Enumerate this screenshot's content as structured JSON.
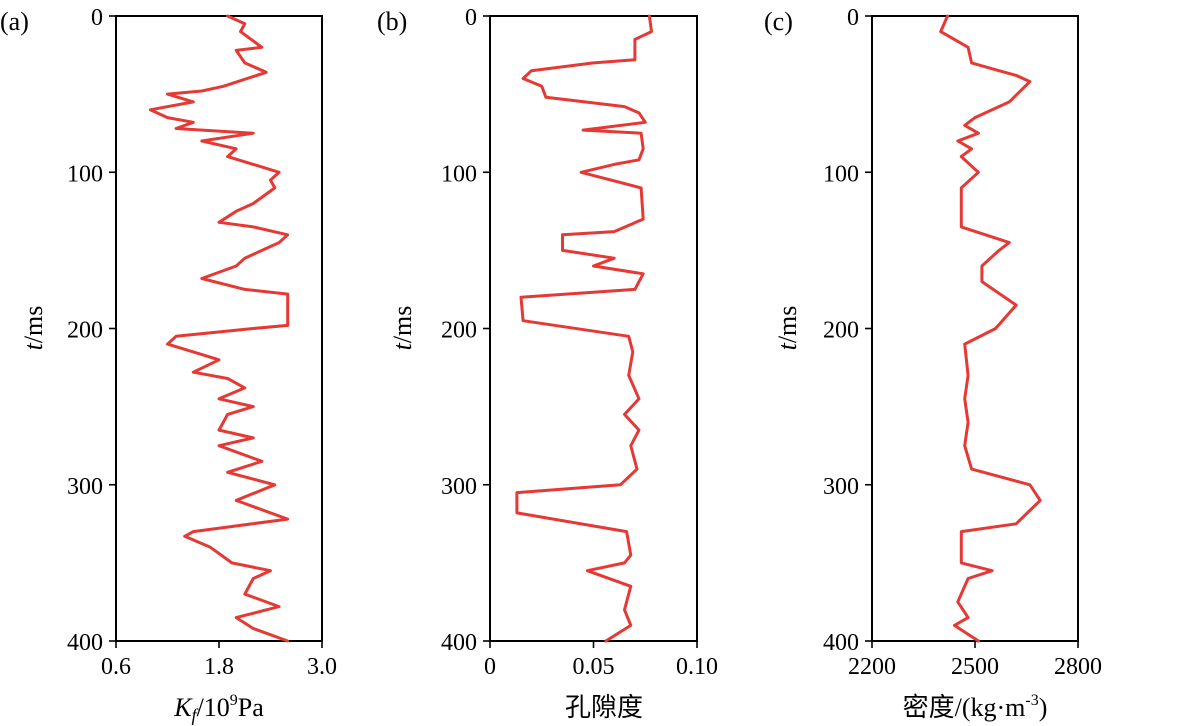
{
  "colors": {
    "series": "#e53935",
    "axis": "#000000"
  },
  "chart_data": [
    {
      "type": "line",
      "panel_label": "(a)",
      "title": "",
      "xlabel": {
        "prefix": "K",
        "subscript": "f",
        "mid": "/10",
        "superscript": "9",
        "suffix": "Pa"
      },
      "ylabel": {
        "italic": "t",
        "rest": "/ms"
      },
      "xlim": [
        0.6,
        3.0
      ],
      "ylim": [
        400,
        0
      ],
      "xticks": [
        0.6,
        1.8,
        3.0
      ],
      "xtick_labels": [
        "0.6",
        "1.8",
        "3.0"
      ],
      "yticks": [
        0,
        100,
        200,
        300,
        400
      ],
      "ytick_labels": [
        "0",
        "100",
        "200",
        "300",
        "400"
      ],
      "series": [
        {
          "name": "Kf",
          "points": [
            [
              1.9,
              0
            ],
            [
              2.1,
              5
            ],
            [
              2.05,
              10
            ],
            [
              2.3,
              20
            ],
            [
              2.0,
              22
            ],
            [
              2.1,
              30
            ],
            [
              2.35,
              36
            ],
            [
              1.85,
              45
            ],
            [
              1.6,
              48
            ],
            [
              1.2,
              50
            ],
            [
              1.5,
              55
            ],
            [
              1.0,
              60
            ],
            [
              1.2,
              65
            ],
            [
              1.5,
              68
            ],
            [
              1.3,
              72
            ],
            [
              2.2,
              75
            ],
            [
              1.6,
              80
            ],
            [
              2.0,
              85
            ],
            [
              1.9,
              90
            ],
            [
              2.2,
              95
            ],
            [
              2.5,
              100
            ],
            [
              2.4,
              105
            ],
            [
              2.45,
              110
            ],
            [
              2.2,
              120
            ],
            [
              2.0,
              125
            ],
            [
              1.8,
              132
            ],
            [
              2.2,
              135
            ],
            [
              2.6,
              140
            ],
            [
              2.5,
              145
            ],
            [
              2.3,
              150
            ],
            [
              2.1,
              155
            ],
            [
              2.0,
              160
            ],
            [
              1.6,
              168
            ],
            [
              2.1,
              175
            ],
            [
              2.6,
              178
            ],
            [
              2.6,
              198
            ],
            [
              2.2,
              200
            ],
            [
              1.3,
              205
            ],
            [
              1.2,
              210
            ],
            [
              1.5,
              215
            ],
            [
              1.8,
              220
            ],
            [
              1.5,
              228
            ],
            [
              1.9,
              232
            ],
            [
              2.1,
              238
            ],
            [
              1.8,
              245
            ],
            [
              2.2,
              250
            ],
            [
              1.9,
              255
            ],
            [
              1.8,
              265
            ],
            [
              2.2,
              270
            ],
            [
              1.8,
              275
            ],
            [
              2.3,
              285
            ],
            [
              1.9,
              292
            ],
            [
              2.45,
              300
            ],
            [
              2.0,
              310
            ],
            [
              2.6,
              322
            ],
            [
              1.5,
              330
            ],
            [
              1.4,
              333
            ],
            [
              1.7,
              340
            ],
            [
              1.95,
              350
            ],
            [
              2.4,
              355
            ],
            [
              2.2,
              360
            ],
            [
              2.1,
              370
            ],
            [
              2.5,
              378
            ],
            [
              2.0,
              385
            ],
            [
              2.2,
              392
            ],
            [
              2.6,
              400
            ]
          ]
        }
      ]
    },
    {
      "type": "line",
      "panel_label": "(b)",
      "title": "",
      "xlabel": {
        "text": "孔隙度"
      },
      "ylabel": {
        "italic": "t",
        "rest": "/ms"
      },
      "xlim": [
        0.0,
        0.1
      ],
      "ylim": [
        400,
        0
      ],
      "xticks": [
        0.0,
        0.05,
        0.1
      ],
      "xtick_labels": [
        "0",
        "0.05",
        "0.10"
      ],
      "yticks": [
        0,
        100,
        200,
        300,
        400
      ],
      "ytick_labels": [
        "0",
        "100",
        "200",
        "300",
        "400"
      ],
      "series": [
        {
          "name": "porosity",
          "points": [
            [
              0.077,
              0
            ],
            [
              0.078,
              10
            ],
            [
              0.07,
              15
            ],
            [
              0.07,
              28
            ],
            [
              0.05,
              30
            ],
            [
              0.02,
              35
            ],
            [
              0.016,
              40
            ],
            [
              0.025,
              45
            ],
            [
              0.027,
              52
            ],
            [
              0.065,
              58
            ],
            [
              0.072,
              62
            ],
            [
              0.075,
              68
            ],
            [
              0.045,
              73
            ],
            [
              0.073,
              75
            ],
            [
              0.074,
              85
            ],
            [
              0.072,
              92
            ],
            [
              0.06,
              95
            ],
            [
              0.044,
              100
            ],
            [
              0.073,
              110
            ],
            [
              0.074,
              130
            ],
            [
              0.06,
              138
            ],
            [
              0.035,
              140
            ],
            [
              0.035,
              150
            ],
            [
              0.06,
              155
            ],
            [
              0.05,
              160
            ],
            [
              0.074,
              165
            ],
            [
              0.07,
              175
            ],
            [
              0.015,
              180
            ],
            [
              0.016,
              195
            ],
            [
              0.067,
              205
            ],
            [
              0.069,
              215
            ],
            [
              0.067,
              230
            ],
            [
              0.072,
              245
            ],
            [
              0.065,
              255
            ],
            [
              0.072,
              265
            ],
            [
              0.068,
              275
            ],
            [
              0.071,
              290
            ],
            [
              0.063,
              300
            ],
            [
              0.013,
              305
            ],
            [
              0.013,
              318
            ],
            [
              0.066,
              330
            ],
            [
              0.068,
              345
            ],
            [
              0.065,
              350
            ],
            [
              0.047,
              355
            ],
            [
              0.068,
              365
            ],
            [
              0.065,
              380
            ],
            [
              0.068,
              390
            ],
            [
              0.056,
              400
            ]
          ]
        }
      ]
    },
    {
      "type": "line",
      "panel_label": "(c)",
      "title": "",
      "xlabel": {
        "prefix": "密度/(kg·m",
        "superscript": "-3",
        "suffix": ")"
      },
      "ylabel": {
        "italic": "t",
        "rest": "/ms"
      },
      "xlim": [
        2200,
        2800
      ],
      "ylim": [
        400,
        0
      ],
      "xticks": [
        2200,
        2500,
        2800
      ],
      "xtick_labels": [
        "2200",
        "2500",
        "2800"
      ],
      "yticks": [
        0,
        100,
        200,
        300,
        400
      ],
      "ytick_labels": [
        "0",
        "100",
        "200",
        "300",
        "400"
      ],
      "series": [
        {
          "name": "density",
          "points": [
            [
              2420,
              0
            ],
            [
              2400,
              10
            ],
            [
              2480,
              20
            ],
            [
              2490,
              30
            ],
            [
              2570,
              35
            ],
            [
              2620,
              38
            ],
            [
              2660,
              42
            ],
            [
              2600,
              55
            ],
            [
              2500,
              65
            ],
            [
              2470,
              70
            ],
            [
              2510,
              75
            ],
            [
              2450,
              80
            ],
            [
              2490,
              85
            ],
            [
              2460,
              90
            ],
            [
              2510,
              100
            ],
            [
              2460,
              110
            ],
            [
              2460,
              135
            ],
            [
              2600,
              145
            ],
            [
              2570,
              150
            ],
            [
              2520,
              160
            ],
            [
              2520,
              170
            ],
            [
              2620,
              185
            ],
            [
              2560,
              200
            ],
            [
              2470,
              210
            ],
            [
              2480,
              230
            ],
            [
              2470,
              245
            ],
            [
              2480,
              260
            ],
            [
              2470,
              275
            ],
            [
              2490,
              290
            ],
            [
              2660,
              300
            ],
            [
              2690,
              310
            ],
            [
              2620,
              325
            ],
            [
              2460,
              330
            ],
            [
              2460,
              350
            ],
            [
              2550,
              355
            ],
            [
              2480,
              360
            ],
            [
              2450,
              375
            ],
            [
              2480,
              385
            ],
            [
              2440,
              390
            ],
            [
              2510,
              400
            ]
          ]
        }
      ]
    }
  ]
}
